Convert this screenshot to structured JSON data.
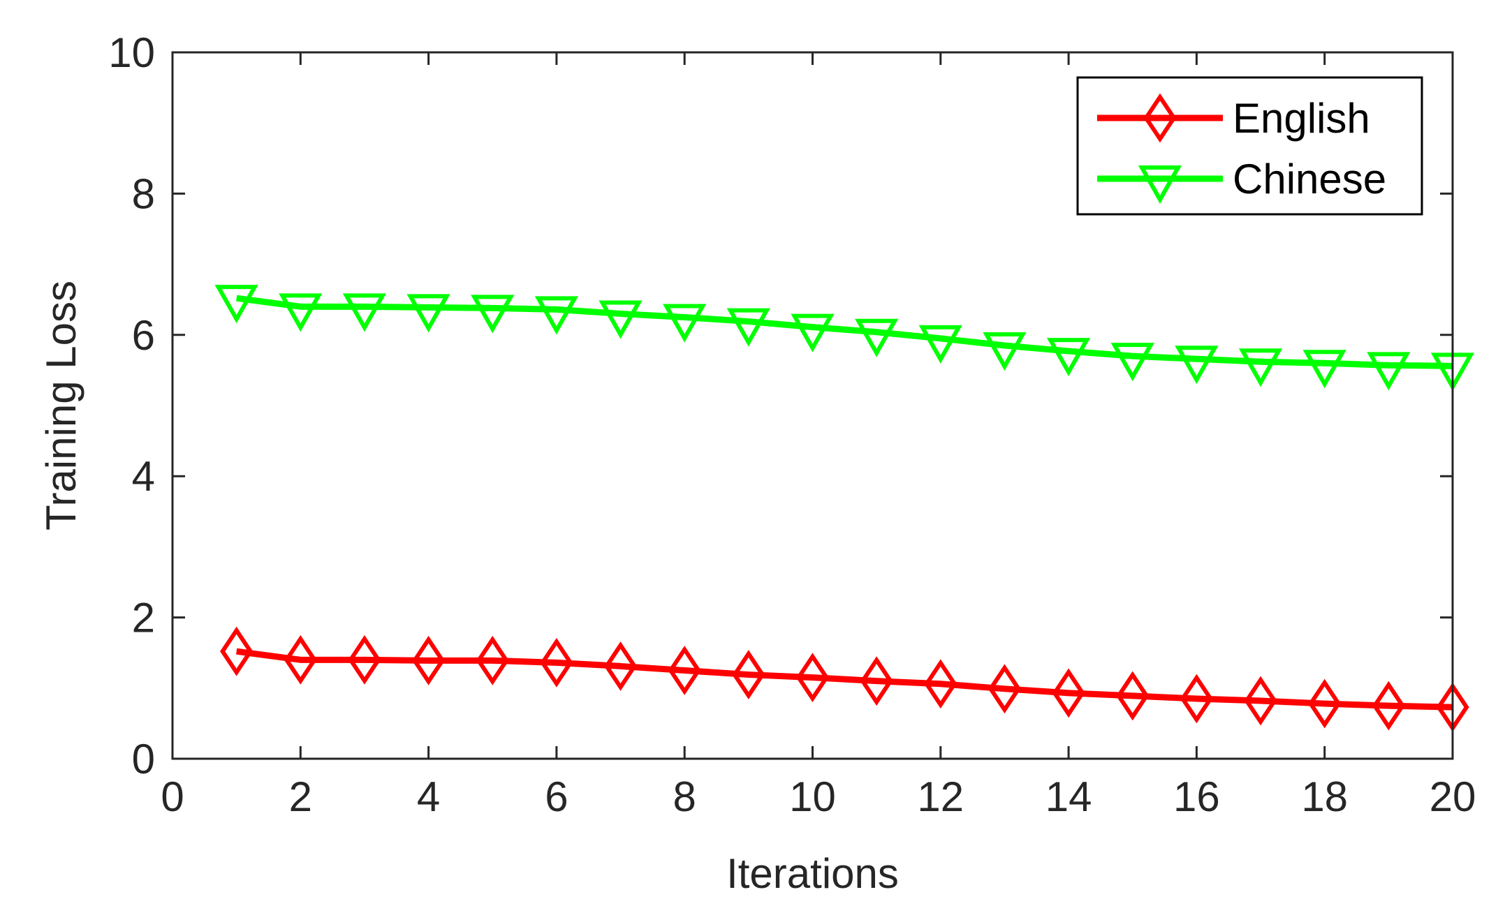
{
  "chart_data": {
    "type": "line",
    "title": "",
    "xlabel": "Iterations",
    "ylabel": "Training Loss",
    "xlim": [
      0,
      20
    ],
    "ylim": [
      0,
      10
    ],
    "xticks": [
      "0",
      "2",
      "4",
      "6",
      "8",
      "10",
      "12",
      "14",
      "16",
      "18",
      "20"
    ],
    "yticks": [
      "0",
      "2",
      "4",
      "6",
      "8",
      "10"
    ],
    "grid": false,
    "legend_position": "top-right",
    "x": [
      1,
      2,
      3,
      4,
      5,
      6,
      7,
      8,
      9,
      10,
      11,
      12,
      13,
      14,
      15,
      16,
      17,
      18,
      19,
      20
    ],
    "series": [
      {
        "name": "English",
        "color": "#ff0000",
        "marker": "diamond",
        "values": [
          1.52,
          1.4,
          1.4,
          1.39,
          1.39,
          1.36,
          1.31,
          1.25,
          1.19,
          1.15,
          1.1,
          1.06,
          0.99,
          0.93,
          0.89,
          0.85,
          0.82,
          0.78,
          0.75,
          0.73
        ]
      },
      {
        "name": "Chinese",
        "color": "#00ff00",
        "marker": "triangle-down",
        "values": [
          6.52,
          6.4,
          6.4,
          6.39,
          6.38,
          6.36,
          6.3,
          6.25,
          6.19,
          6.11,
          6.04,
          5.95,
          5.85,
          5.77,
          5.7,
          5.66,
          5.62,
          5.6,
          5.57,
          5.56
        ]
      }
    ]
  }
}
